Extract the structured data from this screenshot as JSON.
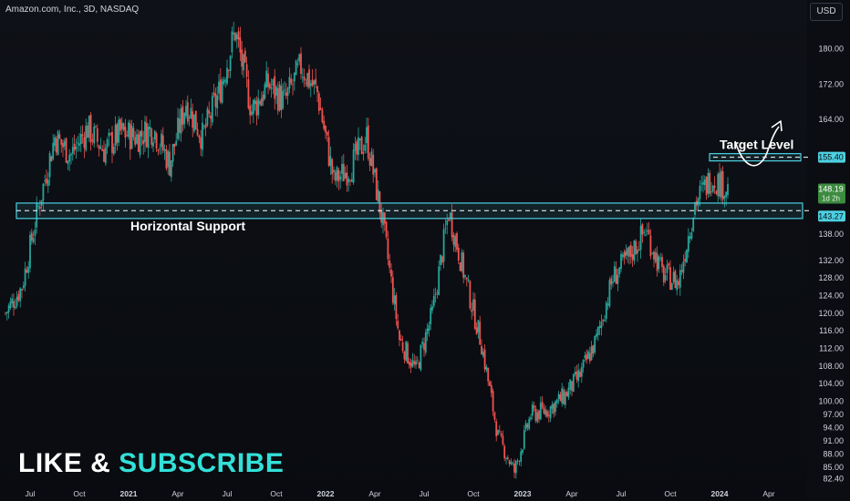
{
  "header": {
    "symbol_title": "Amazon.com, Inc., 3D, NASDAQ",
    "currency_button": "USD"
  },
  "promo": {
    "part1": "LIKE & ",
    "part2": "SUBSCRIBE"
  },
  "colors": {
    "up": "#26a69a",
    "down": "#ef5350",
    "zone": "#4dd0e1",
    "arrow": "#ffffff",
    "price_badge_green": "#3d8b40",
    "text": "#d1d4dc"
  },
  "chart_data": {
    "type": "candlestick",
    "title": "Amazon.com, Inc., 3D, NASDAQ",
    "y_axis": {
      "ticks": [
        "180.00",
        "172.00",
        "164.00",
        "155.40",
        "148.19",
        "143.27",
        "138.00",
        "132.00",
        "128.00",
        "124.00",
        "120.00",
        "116.00",
        "112.00",
        "108.00",
        "104.00",
        "100.00",
        "97.00",
        "94.00",
        "91.00",
        "88.00",
        "85.00",
        "82.40"
      ],
      "range": [
        81.5,
        188
      ]
    },
    "x_axis": {
      "labels": [
        "Jul",
        "Oct",
        "2021",
        "Apr",
        "Jul",
        "Oct",
        "2022",
        "Apr",
        "Jul",
        "Oct",
        "2023",
        "Apr",
        "Jul",
        "Oct",
        "2024",
        "Apr"
      ]
    },
    "price_path": [
      [
        "2020-05",
        120
      ],
      [
        "2020-06",
        126
      ],
      [
        "2020-07",
        144
      ],
      [
        "2020-08",
        160
      ],
      [
        "2020-09",
        156
      ],
      [
        "2020-10",
        162
      ],
      [
        "2020-11",
        157
      ],
      [
        "2020-12",
        161
      ],
      [
        "2021-01",
        160
      ],
      [
        "2021-02",
        162
      ],
      [
        "2021-03",
        154
      ],
      [
        "2021-04",
        168
      ],
      [
        "2021-05",
        160
      ],
      [
        "2021-06",
        170
      ],
      [
        "2021-07",
        184
      ],
      [
        "2021-08",
        166
      ],
      [
        "2021-09",
        172
      ],
      [
        "2021-10",
        168
      ],
      [
        "2021-11",
        176
      ],
      [
        "2021-12",
        170
      ],
      [
        "2022-01",
        150
      ],
      [
        "2022-02",
        153
      ],
      [
        "2022-03",
        160
      ],
      [
        "2022-04",
        140
      ],
      [
        "2022-05",
        114
      ],
      [
        "2022-06",
        107
      ],
      [
        "2022-07",
        120
      ],
      [
        "2022-08",
        143
      ],
      [
        "2022-09",
        128
      ],
      [
        "2022-10",
        113
      ],
      [
        "2022-11",
        92
      ],
      [
        "2022-12",
        84
      ],
      [
        "2023-01",
        97
      ],
      [
        "2023-02",
        98
      ],
      [
        "2023-03",
        101
      ],
      [
        "2023-04",
        106
      ],
      [
        "2023-05",
        114
      ],
      [
        "2023-06",
        128
      ],
      [
        "2023-07",
        133
      ],
      [
        "2023-08",
        139
      ],
      [
        "2023-09",
        129
      ],
      [
        "2023-10",
        127
      ],
      [
        "2023-11",
        145
      ],
      [
        "2023-12",
        151
      ],
      [
        "2024-01",
        148.19
      ]
    ],
    "annotations": {
      "target_level": {
        "label": "Target Level",
        "price": 155.4
      },
      "horizontal_support": {
        "label": "Horizontal Support",
        "price": 143.27,
        "zone": [
          141.5,
          145.0
        ]
      },
      "last_price": {
        "value": "148.19",
        "countdown": "1d 2h"
      }
    },
    "grid": false,
    "legend": "none"
  }
}
